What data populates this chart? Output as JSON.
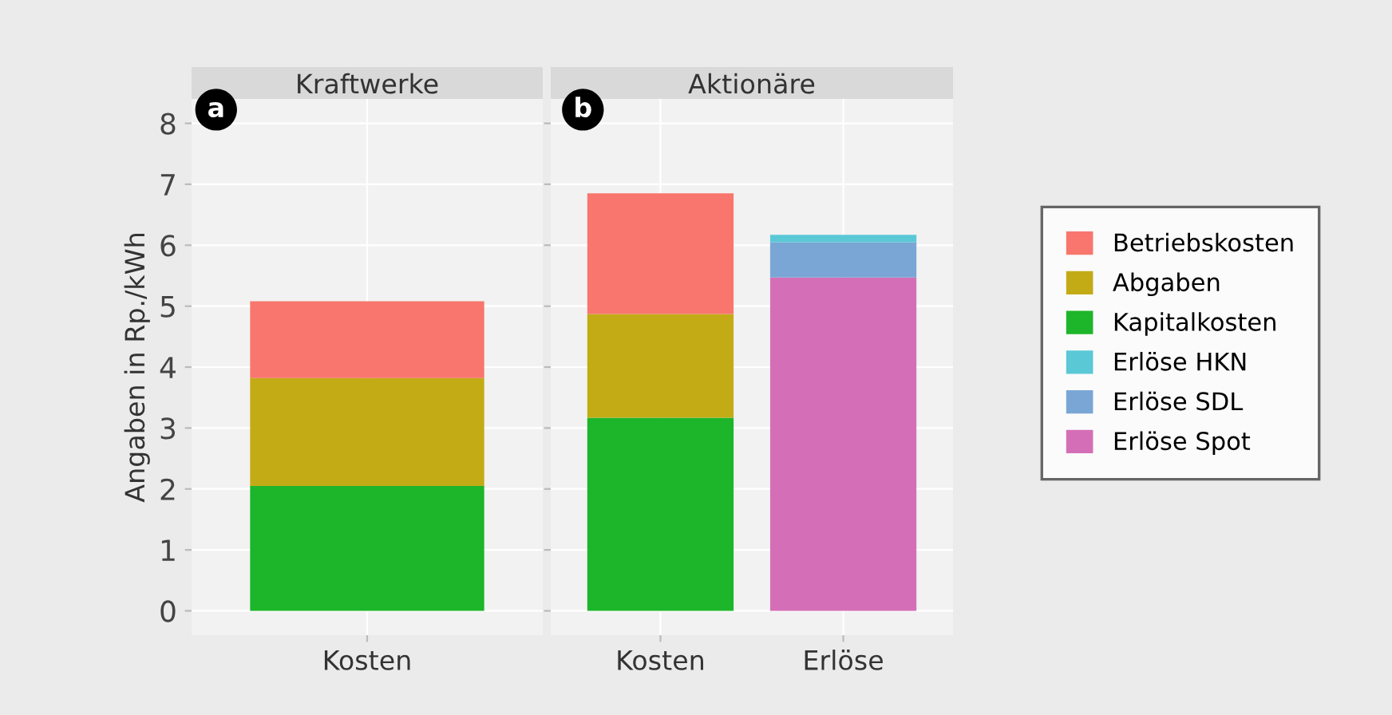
{
  "chart_data": [
    {
      "type": "bar",
      "title": "Kraftwerke",
      "ylabel": "Angaben in Rp./kWh",
      "annotations": [
        "a"
      ],
      "categories": [
        "Kosten"
      ],
      "stacked": true,
      "ylim": [
        -0.4,
        8.4
      ],
      "yticks": [
        0,
        1,
        2,
        3,
        4,
        5,
        6,
        7,
        8
      ],
      "grid": true,
      "legend": "right",
      "series": [
        {
          "name": "Kapitalkosten",
          "color": "#1db52a",
          "values": [
            2.05
          ]
        },
        {
          "name": "Abgaben",
          "color": "#c3ab16",
          "values": [
            1.77
          ]
        },
        {
          "name": "Betriebskosten",
          "color": "#f8766d",
          "values": [
            1.26
          ]
        }
      ]
    },
    {
      "type": "bar",
      "title": "Aktionäre",
      "annotations": [
        "b"
      ],
      "categories": [
        "Kosten",
        "Erlöse"
      ],
      "stacked": true,
      "ylim": [
        -0.4,
        8.4
      ],
      "yticks": [
        0,
        1,
        2,
        3,
        4,
        5,
        6,
        7,
        8
      ],
      "grid": true,
      "legend": "right",
      "tick_labels": "x",
      "series": [
        {
          "name": "Kapitalkosten",
          "color": "#1db52a",
          "values": [
            3.17,
            null
          ]
        },
        {
          "name": "Abgaben",
          "color": "#c3ab16",
          "values": [
            1.7,
            null
          ]
        },
        {
          "name": "Betriebskosten",
          "color": "#f8766d",
          "values": [
            1.98,
            null
          ]
        },
        {
          "name": "Erlöse Spot",
          "color": "#d46fb7",
          "values": [
            null,
            5.47
          ]
        },
        {
          "name": "Erlöse SDL",
          "color": "#7aa6d6",
          "values": [
            null,
            0.58
          ]
        },
        {
          "name": "Erlöse HKN",
          "color": "#5bc8d6",
          "values": [
            null,
            0.12
          ]
        }
      ]
    }
  ]
}
